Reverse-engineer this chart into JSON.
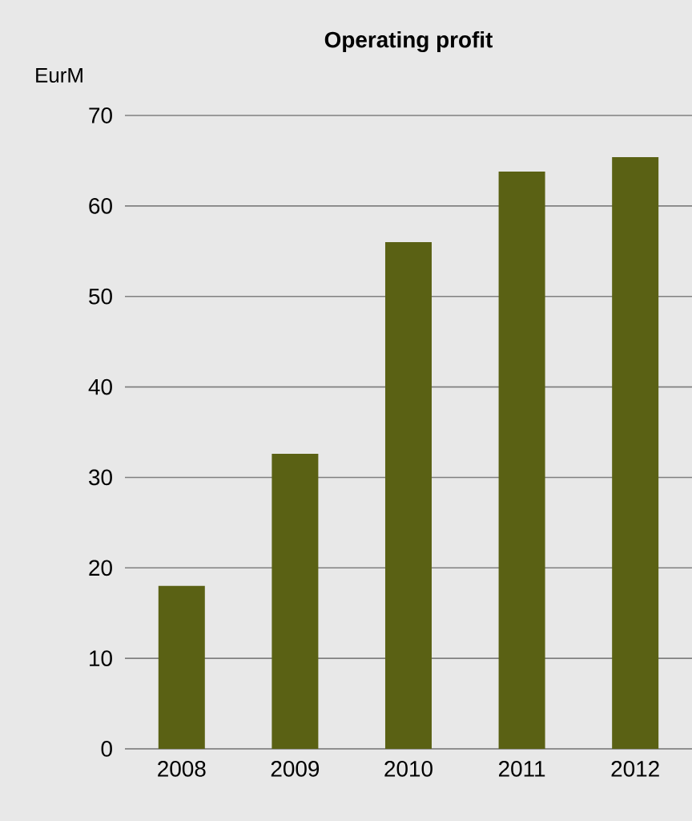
{
  "chart_data": {
    "type": "bar",
    "title": "Operating profit",
    "ylabel": "EurM",
    "categories": [
      "2008",
      "2009",
      "2010",
      "2011",
      "2012"
    ],
    "values": [
      18,
      32.6,
      56,
      63.8,
      65.4
    ],
    "color": "#5a6114",
    "ylim": [
      0,
      70
    ],
    "yticks": [
      0,
      10,
      20,
      30,
      40,
      50,
      60,
      70
    ],
    "grid": "y"
  }
}
